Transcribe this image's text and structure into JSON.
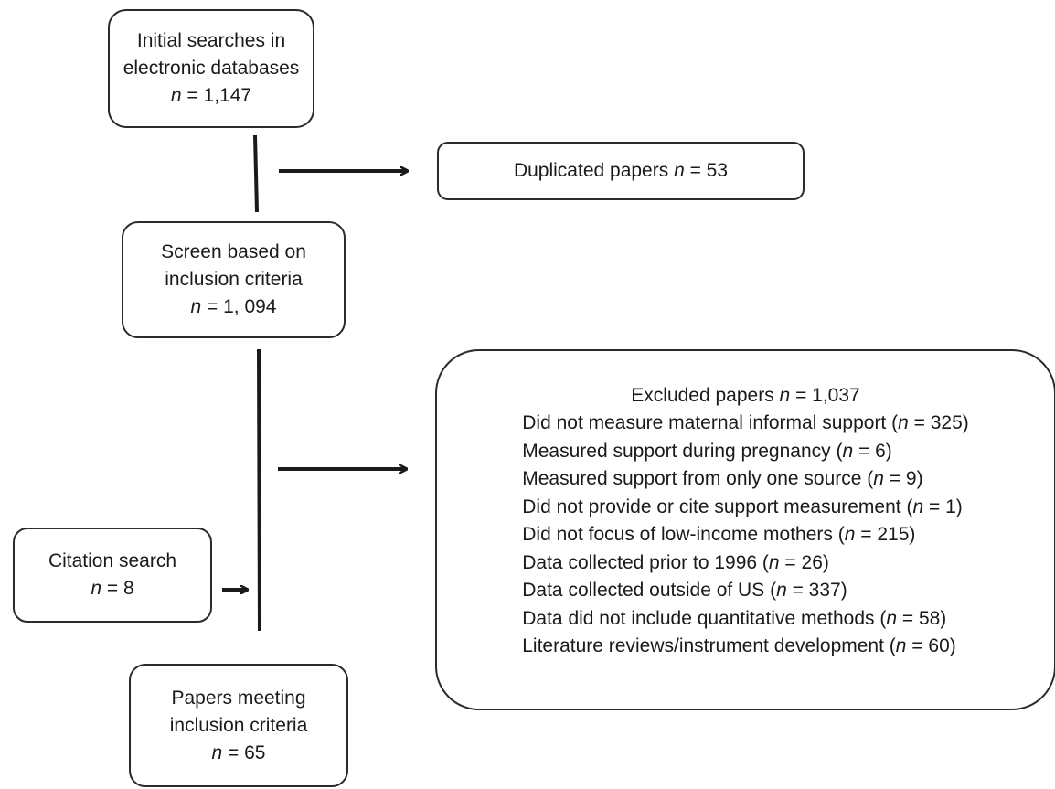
{
  "initial": {
    "line1": "Initial searches in",
    "line2": "electronic databases",
    "n_label": "n",
    "n_value": " = 1,147"
  },
  "duplicated": {
    "text": "Duplicated papers ",
    "n_label": "n",
    "n_value": " = 53"
  },
  "screen": {
    "line1": "Screen based on",
    "line2": "inclusion criteria",
    "n_label": "n",
    "n_value": " = 1, 094"
  },
  "excluded": {
    "title": "Excluded papers ",
    "n_label": "n",
    "n_value": " = 1,037",
    "reasons": [
      {
        "text": "Did not measure maternal informal support (",
        "n": "n",
        "value": " = 325)"
      },
      {
        "text": "Measured support during pregnancy (",
        "n": "n",
        "value": " = 6)"
      },
      {
        "text": "Measured support from only one source (",
        "n": "n",
        "value": " = 9)"
      },
      {
        "text": "Did not provide or cite support measurement (",
        "n": "n",
        "value": " = 1)"
      },
      {
        "text": "Did not focus of low-income mothers (",
        "n": "n",
        "value": " = 215)"
      },
      {
        "text": "Data collected prior to 1996 (",
        "n": "n",
        "value": " = 26)"
      },
      {
        "text": "Data collected outside of US (",
        "n": "n",
        "value": " = 337)"
      },
      {
        "text": "Data did not include quantitative methods (",
        "n": "n",
        "value": " = 58)"
      },
      {
        "text": "Literature reviews/instrument development (",
        "n": "n",
        "value": " = 60)"
      }
    ]
  },
  "citation": {
    "line1": "Citation search",
    "n_label": "n",
    "n_value": " = 8"
  },
  "meeting": {
    "line1": "Papers meeting",
    "line2": "inclusion criteria",
    "n_label": "n",
    "n_value": " = 65"
  },
  "colors": {
    "stroke": "#2b2b2b",
    "text": "#1a1a1a"
  }
}
